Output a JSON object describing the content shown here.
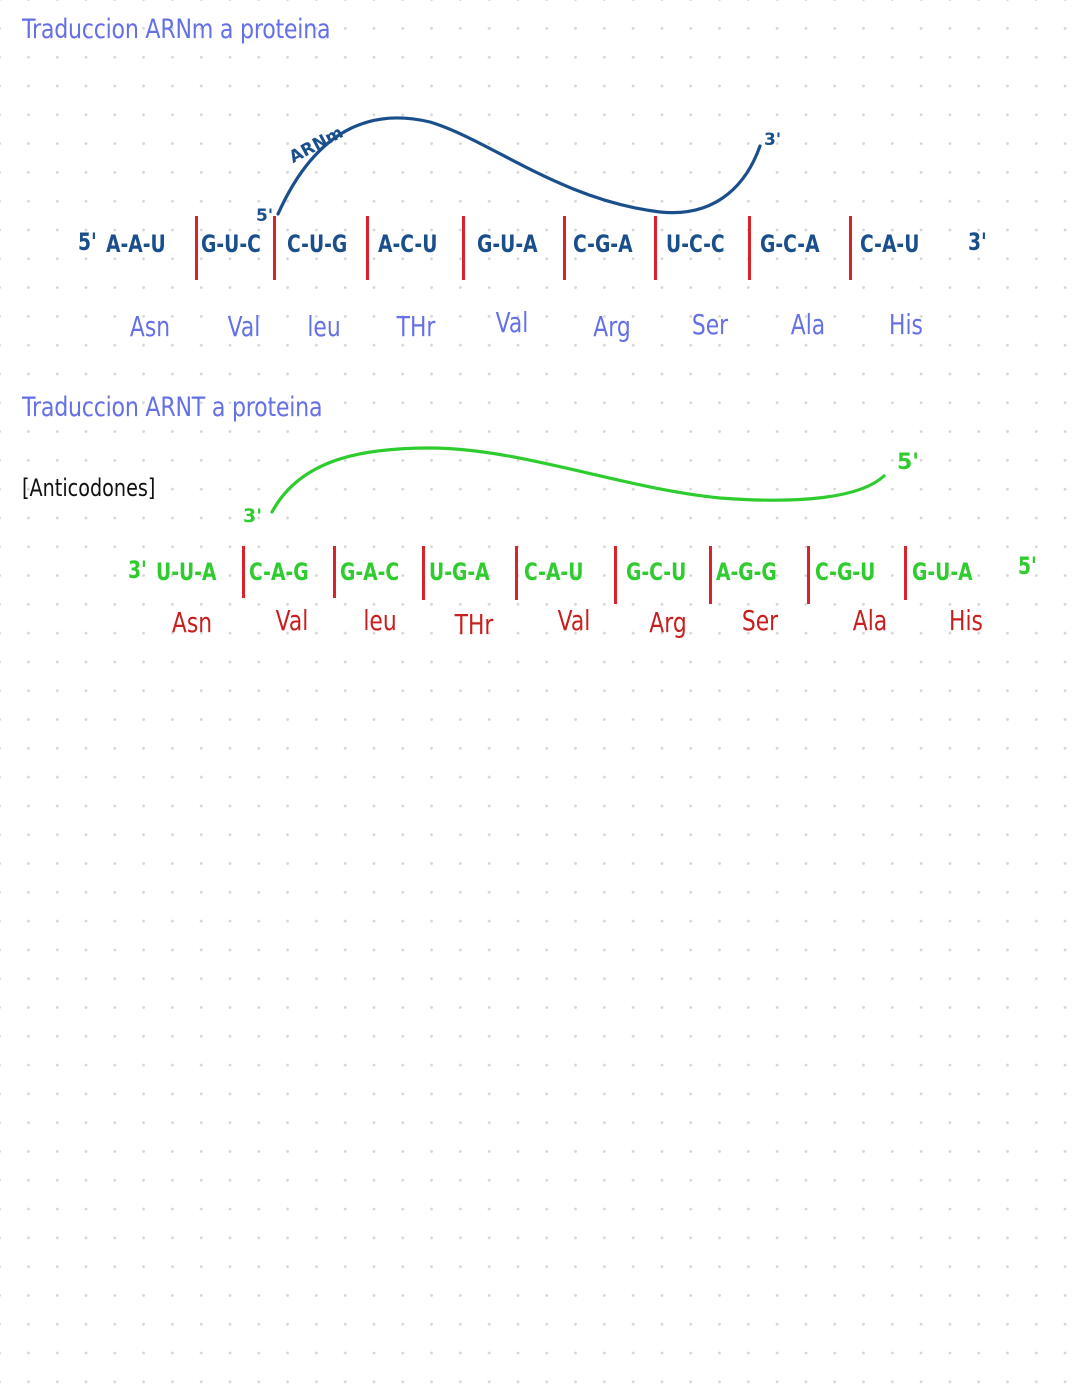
{
  "colors": {
    "title": "#6470e6",
    "mrna": "#1a4f8c",
    "trna": "#2ecc2e",
    "divider": "#d8232a",
    "amino_mrna": "#6470e6",
    "amino_trna": "#c81e1e",
    "black": "#111111"
  },
  "section1": {
    "title": "Traduccion ARNm  a  proteina",
    "curve_label": "ARNm",
    "curve_start": "5'",
    "curve_end": "3'",
    "sequence": {
      "prime_left": "5'",
      "prime_right": "3'",
      "codons": [
        "A-A-U",
        "G-U-C",
        "C-U-G",
        "A-C-U",
        "G-U-A",
        "C-G-A",
        "U-C-C",
        "G-C-A",
        "C-A-U"
      ]
    },
    "amino_acids": [
      "Asn",
      "Val",
      "leu",
      "THr",
      "Val",
      "Arg",
      "Ser",
      "Ala",
      "His"
    ]
  },
  "section2": {
    "title": "Traduccion ARNT a proteina",
    "subtitle": "[Anticodones]",
    "curve_start": "3'",
    "curve_end": "5'",
    "sequence": {
      "prime_left": "3'",
      "prime_right": "5'",
      "codons": [
        "U-U-A",
        "C-A-G",
        "G-A-C",
        "U-G-A",
        "C-A-U",
        "G-C-U",
        "A-G-G",
        "C-G-U",
        "G-U-A"
      ]
    },
    "amino_acids": [
      "Asn",
      "Val",
      "leu",
      "THr",
      "Val",
      "Arg",
      "Ser",
      "Ala",
      "His"
    ]
  }
}
